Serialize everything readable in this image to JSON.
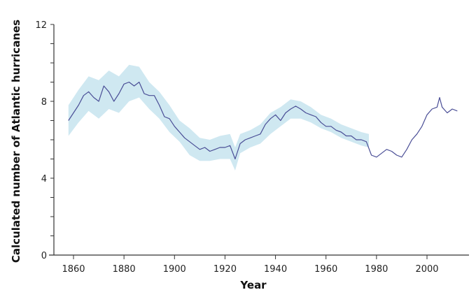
{
  "chart_data": {
    "type": "line",
    "title": "",
    "xlabel": "Year",
    "ylabel": "Calculated number of Atlantic hurricanes",
    "xlim": [
      1850,
      2016
    ],
    "ylim": [
      0,
      12
    ],
    "x_ticks": [
      1860,
      1880,
      1900,
      1920,
      1940,
      1960,
      1980,
      2000
    ],
    "y_ticks": [
      0,
      4,
      8,
      12
    ],
    "y_minor_step": 1,
    "grid": false,
    "legend": null,
    "colors": {
      "line": "#4a4e96",
      "band": "#cfe8f1",
      "axis": "#333333"
    },
    "series": [
      {
        "name": "Calculated number of Atlantic hurricanes",
        "x": [
          1858,
          1860,
          1862,
          1864,
          1866,
          1868,
          1870,
          1872,
          1874,
          1876,
          1878,
          1880,
          1882,
          1884,
          1886,
          1888,
          1890,
          1892,
          1894,
          1896,
          1898,
          1900,
          1902,
          1904,
          1906,
          1908,
          1910,
          1912,
          1914,
          1916,
          1918,
          1920,
          1922,
          1924,
          1926,
          1928,
          1930,
          1932,
          1934,
          1936,
          1938,
          1940,
          1942,
          1944,
          1946,
          1948,
          1950,
          1952,
          1954,
          1956,
          1958,
          1960,
          1962,
          1964,
          1966,
          1968,
          1970,
          1972,
          1974,
          1976,
          1978,
          1980,
          1982,
          1984,
          1986,
          1988,
          1990,
          1992,
          1994,
          1996,
          1998,
          2000,
          2002,
          2004,
          2005,
          2006,
          2008,
          2010,
          2012
        ],
        "y": [
          7.0,
          7.4,
          7.8,
          8.3,
          8.5,
          8.2,
          8.0,
          8.8,
          8.5,
          8.0,
          8.4,
          8.9,
          9.0,
          8.8,
          9.0,
          8.4,
          8.3,
          8.3,
          7.8,
          7.2,
          7.1,
          6.7,
          6.4,
          6.1,
          5.9,
          5.7,
          5.5,
          5.6,
          5.4,
          5.5,
          5.6,
          5.6,
          5.7,
          5.0,
          5.8,
          6.0,
          6.1,
          6.2,
          6.3,
          6.8,
          7.1,
          7.3,
          7.0,
          7.4,
          7.6,
          7.75,
          7.6,
          7.4,
          7.3,
          7.2,
          6.9,
          6.7,
          6.7,
          6.5,
          6.4,
          6.2,
          6.2,
          6.0,
          6.0,
          5.9,
          5.2,
          5.1,
          5.3,
          5.5,
          5.4,
          5.2,
          5.1,
          5.5,
          6.0,
          6.3,
          6.7,
          7.3,
          7.6,
          7.7,
          8.2,
          7.7,
          7.4,
          7.6,
          7.5
        ]
      }
    ],
    "confidence_band": {
      "x": [
        1858,
        1862,
        1866,
        1870,
        1874,
        1878,
        1882,
        1886,
        1890,
        1894,
        1898,
        1902,
        1906,
        1910,
        1914,
        1918,
        1922,
        1924,
        1926,
        1930,
        1934,
        1938,
        1942,
        1946,
        1950,
        1954,
        1958,
        1962,
        1966,
        1970,
        1974,
        1977
      ],
      "lower": [
        6.2,
        6.9,
        7.5,
        7.1,
        7.6,
        7.4,
        8.0,
        8.2,
        7.6,
        7.1,
        6.4,
        5.9,
        5.2,
        4.9,
        4.9,
        5.0,
        5.0,
        4.4,
        5.3,
        5.6,
        5.8,
        6.3,
        6.7,
        7.1,
        7.1,
        6.9,
        6.6,
        6.4,
        6.1,
        5.9,
        5.7,
        5.6
      ],
      "upper": [
        7.8,
        8.6,
        9.3,
        9.1,
        9.6,
        9.3,
        9.9,
        9.8,
        9.0,
        8.5,
        7.8,
        7.0,
        6.6,
        6.1,
        6.0,
        6.2,
        6.3,
        5.6,
        6.3,
        6.5,
        6.8,
        7.4,
        7.7,
        8.1,
        8.0,
        7.7,
        7.3,
        7.1,
        6.8,
        6.6,
        6.4,
        6.3
      ]
    }
  }
}
